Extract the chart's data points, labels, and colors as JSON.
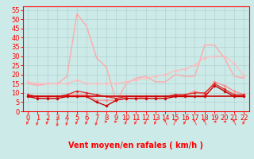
{
  "x": [
    0,
    1,
    2,
    3,
    4,
    5,
    6,
    7,
    8,
    9,
    10,
    11,
    12,
    13,
    14,
    15,
    16,
    17,
    18,
    19,
    20,
    21,
    22
  ],
  "series": [
    {
      "name": "light_pink_peak",
      "color": "#ffaaaa",
      "linewidth": 1.0,
      "marker": null,
      "values": [
        15,
        14,
        15,
        15,
        19,
        53,
        46,
        29,
        24,
        5,
        15,
        18,
        19,
        16,
        16,
        20,
        19,
        19,
        36,
        36,
        29,
        19,
        18
      ]
    },
    {
      "name": "light_pink_rising",
      "color": "#ffbbbb",
      "linewidth": 0.9,
      "marker": "D",
      "markersize": 1.8,
      "values": [
        16,
        15,
        15,
        15,
        15,
        17,
        15,
        15,
        15,
        15,
        16,
        17,
        18,
        19,
        20,
        22,
        23,
        25,
        29,
        30,
        30,
        26,
        19
      ]
    },
    {
      "name": "medium_pink",
      "color": "#ff8888",
      "linewidth": 0.9,
      "marker": "D",
      "markersize": 1.8,
      "values": [
        9,
        8,
        8,
        8,
        9,
        9,
        9,
        6,
        6,
        6,
        7,
        7,
        8,
        8,
        8,
        9,
        9,
        11,
        9,
        16,
        14,
        11,
        9
      ]
    },
    {
      "name": "dark_red_1",
      "color": "#cc0000",
      "linewidth": 1.0,
      "marker": "D",
      "markersize": 1.8,
      "values": [
        8,
        7,
        7,
        7,
        8,
        8,
        8,
        5,
        3,
        6,
        7,
        7,
        7,
        7,
        7,
        8,
        8,
        8,
        8,
        14,
        11,
        8,
        8
      ]
    },
    {
      "name": "dark_red_2",
      "color": "#dd2222",
      "linewidth": 0.9,
      "marker": "D",
      "markersize": 1.6,
      "values": [
        9,
        8,
        8,
        8,
        9,
        11,
        10,
        9,
        8,
        7,
        8,
        8,
        8,
        8,
        8,
        9,
        9,
        10,
        10,
        15,
        12,
        9,
        9
      ]
    },
    {
      "name": "dark_red_flat",
      "color": "#cc0000",
      "linewidth": 1.2,
      "marker": null,
      "values": [
        8,
        8,
        8,
        8,
        8,
        8,
        8,
        8,
        8,
        8,
        8,
        8,
        8,
        8,
        8,
        8,
        8,
        8,
        8,
        8,
        8,
        8,
        8
      ]
    }
  ],
  "xlim": [
    -0.5,
    22.5
  ],
  "ylim": [
    0,
    57
  ],
  "yticks": [
    0,
    5,
    10,
    15,
    20,
    25,
    30,
    35,
    40,
    45,
    50,
    55
  ],
  "xticks": [
    0,
    1,
    2,
    3,
    4,
    5,
    6,
    7,
    8,
    9,
    10,
    11,
    12,
    13,
    14,
    15,
    16,
    17,
    18,
    19,
    20,
    21,
    22
  ],
  "xlabel": "Vent moyen/en rafales ( km/h )",
  "background_color": "#cceae8",
  "grid_color": "#aacccc",
  "axis_color": "#ff0000",
  "tick_label_color": "#ff0000",
  "xlabel_color": "#ff0000",
  "xlabel_fontsize": 7,
  "tick_fontsize": 6,
  "arrow_color": "#ff4444",
  "arrow_angles": [
    225,
    210,
    225,
    180,
    210,
    225,
    225,
    210,
    90,
    90,
    225,
    225,
    225,
    225,
    315,
    45,
    225,
    315,
    315,
    270,
    270,
    315,
    225
  ]
}
